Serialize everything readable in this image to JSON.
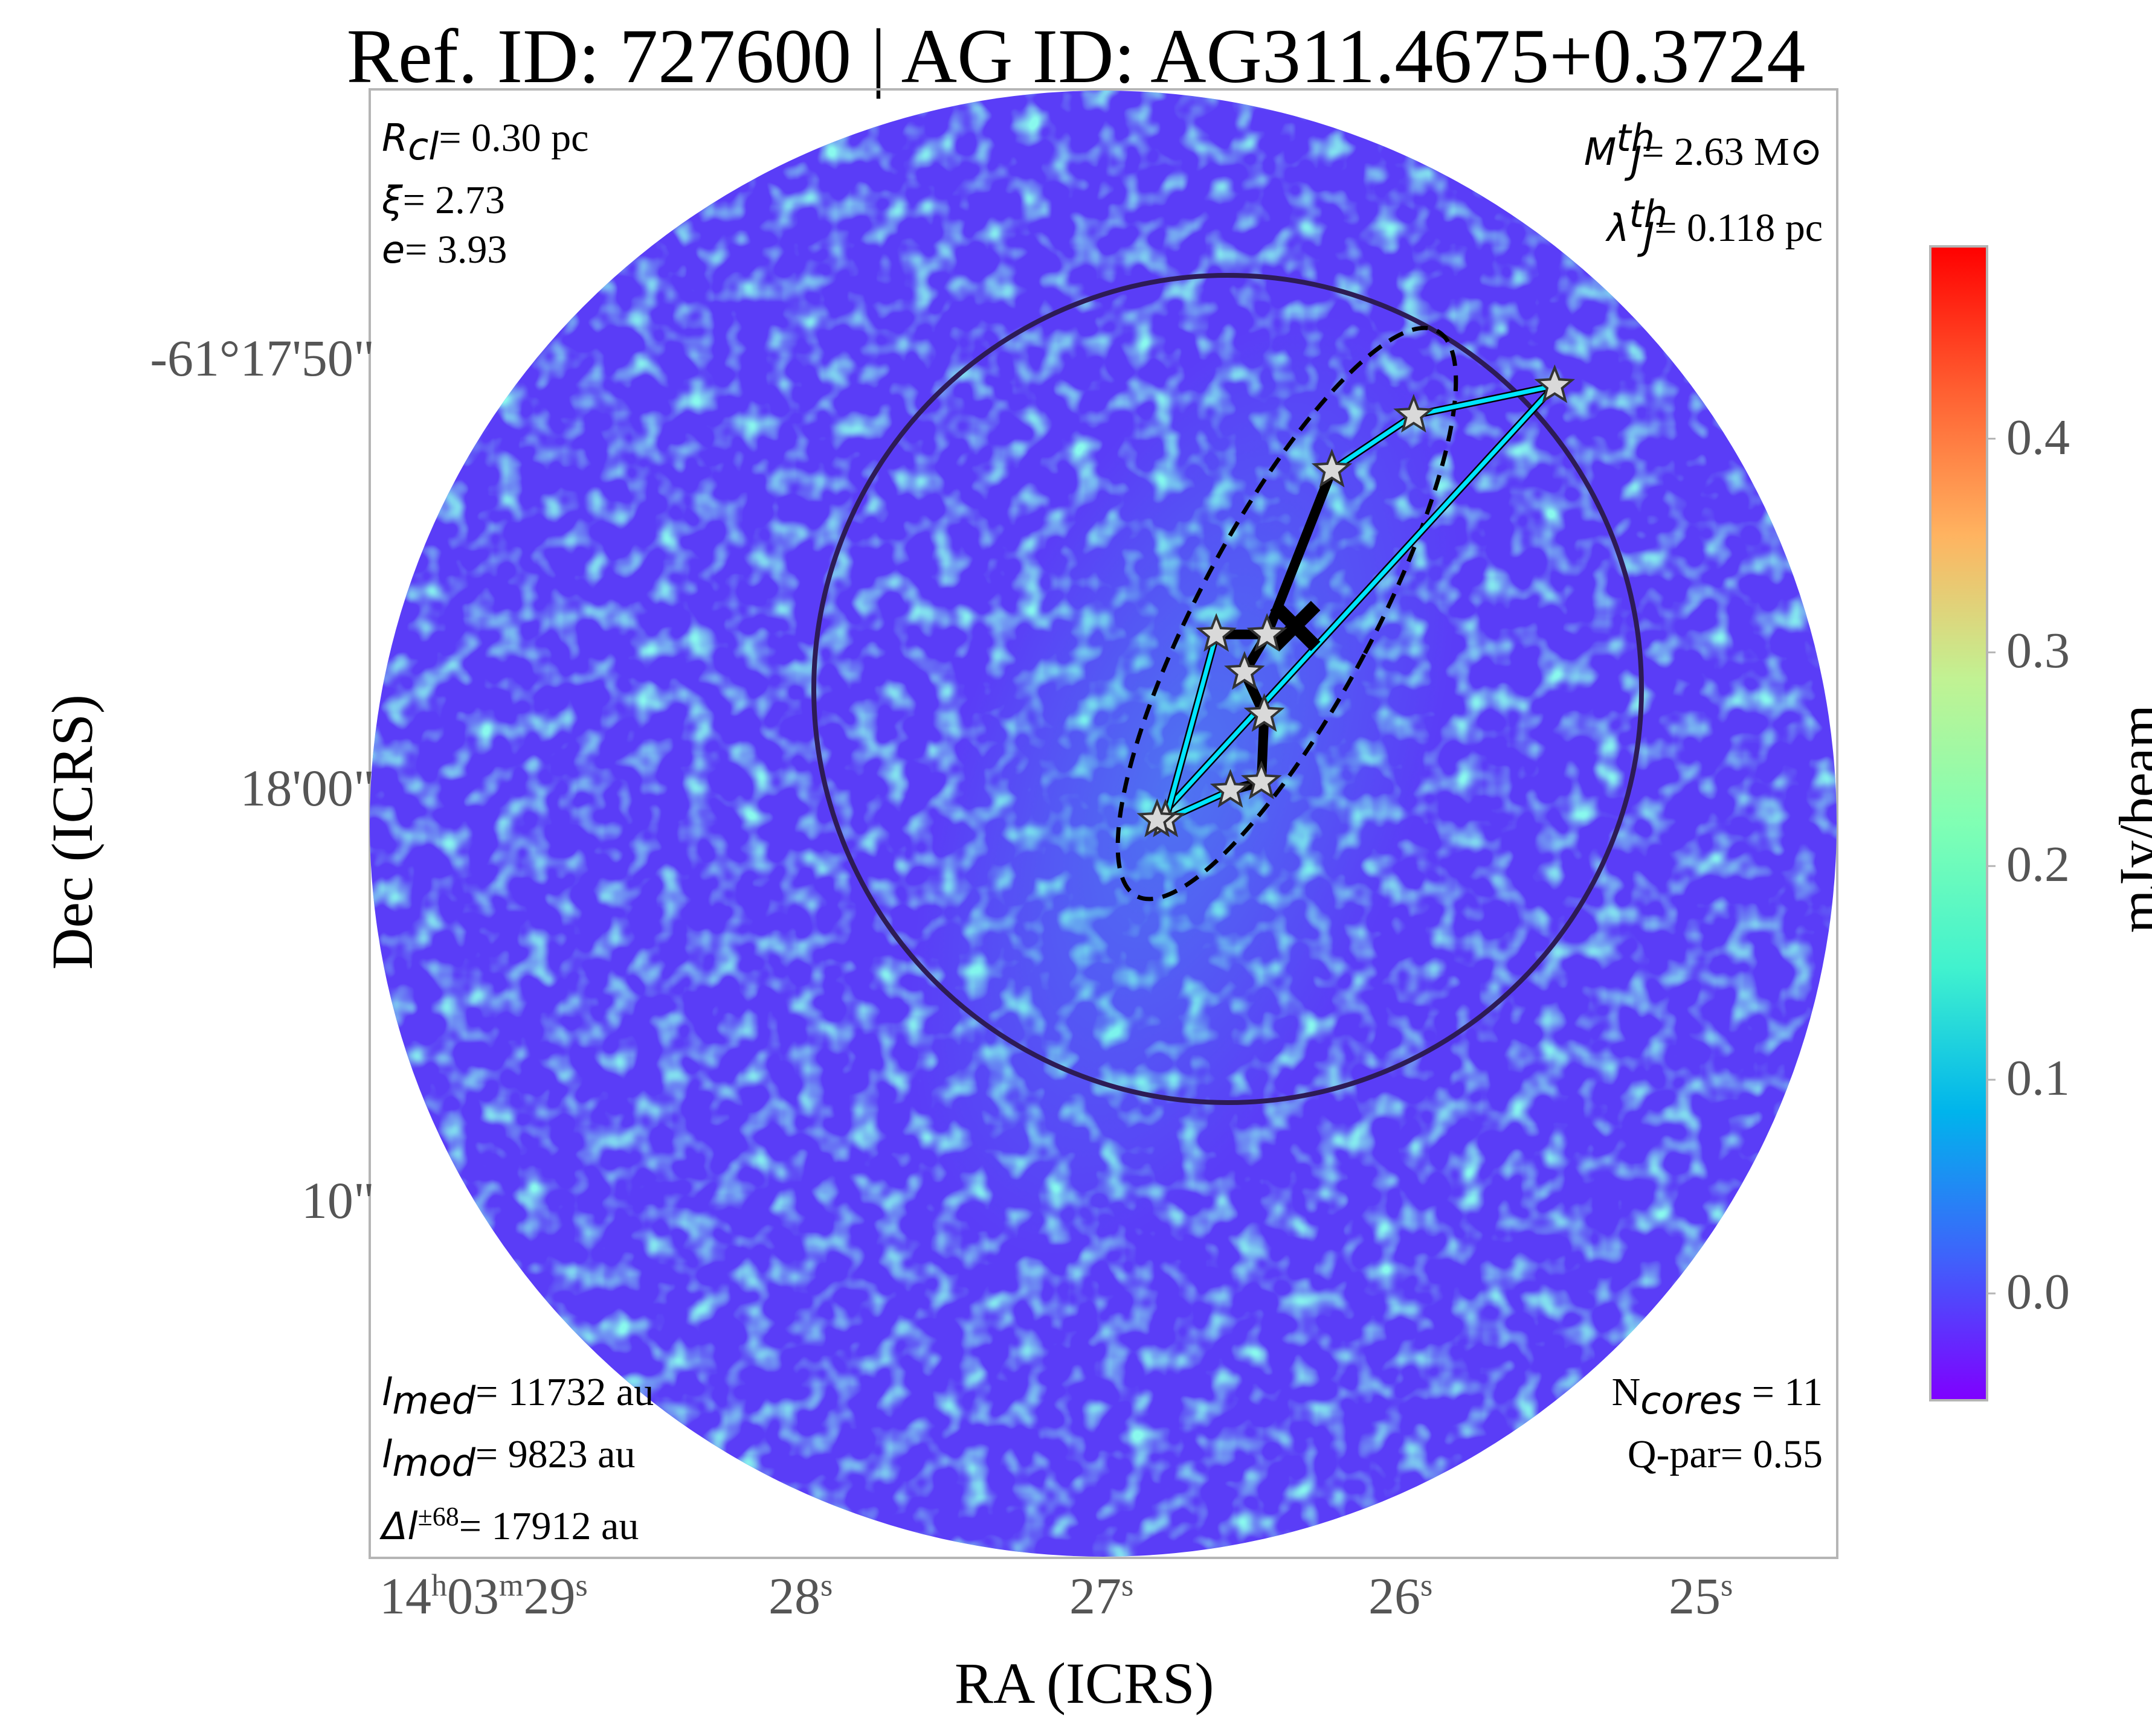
{
  "title": "Ref. ID: 727600 | AG ID: AG311.4675+0.3724",
  "annotations": {
    "top_left": [
      {
        "sym": "R",
        "sub": "cl",
        "text": "= 0.30 pc"
      },
      {
        "sym": "ξ",
        "sub": "",
        "text": "= 2.73"
      },
      {
        "sym": "e",
        "sub": "",
        "text": "= 3.93"
      }
    ],
    "top_right": [
      {
        "sym": "M",
        "sub": "J",
        "sup": "th",
        "text": "= 2.63 M⊙"
      },
      {
        "sym": "λ",
        "sub": "J",
        "sup": "th",
        "text": "= 0.118 pc"
      }
    ],
    "bottom_left": [
      {
        "sym": "l",
        "sub": "med",
        "sup": "",
        "text": "= 11732 au"
      },
      {
        "sym": "l",
        "sub": "mod",
        "sup": "",
        "text": "= 9823 au"
      },
      {
        "sym": "Δl",
        "sub": "",
        "sup": "±68",
        "text": "= 17912 au"
      }
    ],
    "bottom_right": [
      {
        "pre": "N",
        "sub": "cores",
        "text": " = 11"
      },
      {
        "pre": "Q-par",
        "sub": "",
        "text": "= 0.55"
      }
    ]
  },
  "chart_data": {
    "type": "heatmap",
    "title": "Ref. ID: 727600 | AG ID: AG311.4675+0.3724",
    "xlabel": "RA (ICRS)",
    "ylabel": "Dec (ICRS)",
    "x_ticks": [
      {
        "main": "14",
        "sup1": "h",
        "mid": "03",
        "sup2": "m",
        "last": "29",
        "sup3": "s"
      },
      {
        "main": "28",
        "sup": "s"
      },
      {
        "main": "27",
        "sup": "s"
      },
      {
        "main": "26",
        "sup": "s"
      },
      {
        "main": "25",
        "sup": "s"
      }
    ],
    "x_tick_values_s": [
      29,
      28,
      27,
      26,
      25
    ],
    "y_ticks": [
      "-61°17'50\"",
      "18'00\"",
      "10\""
    ],
    "y_tick_values_arcsec": [
      50,
      60,
      70
    ],
    "colorbar": {
      "label": "mJy/beam",
      "ticks": [
        "0.4",
        "0.3",
        "0.2",
        "0.1",
        "0.0"
      ],
      "tick_values": [
        0.4,
        0.3,
        0.2,
        0.1,
        0.0
      ],
      "range": [
        -0.05,
        0.49
      ],
      "colormap": "rainbow",
      "colors": [
        "#7f00ff",
        "#3e63fb",
        "#00b4ec",
        "#41f2ce",
        "#80ffb4",
        "#c1f293",
        "#ffb360",
        "#ff5f31",
        "#ff0000"
      ]
    },
    "field_background": "#5a3df7",
    "grid": false,
    "legend": "none",
    "overlays": {
      "cluster_circle": {
        "color": "#2d1b55",
        "style": "solid"
      },
      "fitted_ellipse": {
        "color": "#000000",
        "style": "dashed"
      },
      "mst_edges_color": "#000000",
      "hull_edges_color": "#00e5ff",
      "cores": [
        {
          "ra_s": 25.64,
          "dec_arcsec": 50.7
        },
        {
          "ra_s": 26.14,
          "dec_arcsec": 51.4
        },
        {
          "ra_s": 26.43,
          "dec_arcsec": 52.7
        },
        {
          "ra_s": 26.84,
          "dec_arcsec": 56.6
        },
        {
          "ra_s": 26.66,
          "dec_arcsec": 56.6
        },
        {
          "ra_s": 26.74,
          "dec_arcsec": 57.5
        },
        {
          "ra_s": 26.67,
          "dec_arcsec": 58.5
        },
        {
          "ra_s": 26.68,
          "dec_arcsec": 60.1
        },
        {
          "ra_s": 26.79,
          "dec_arcsec": 60.3
        },
        {
          "ra_s": 27.02,
          "dec_arcsec": 61.0
        },
        {
          "ra_s": 27.05,
          "dec_arcsec": 61.0
        }
      ],
      "center_marker": {
        "ra_s": 26.56,
        "dec_arcsec": 56.4
      }
    }
  }
}
